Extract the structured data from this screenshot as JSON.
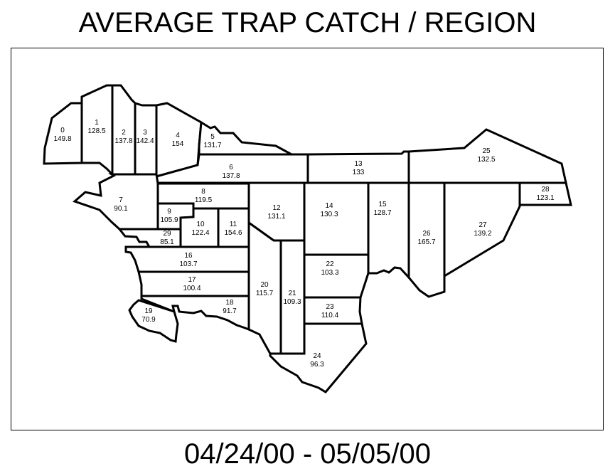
{
  "title": "AVERAGE TRAP CATCH / REGION",
  "date_range": "04/24/00 - 05/05/00",
  "regions": [
    {
      "id": "0",
      "value": "149.8"
    },
    {
      "id": "1",
      "value": "128.5"
    },
    {
      "id": "2",
      "value": "137.8"
    },
    {
      "id": "3",
      "value": "142.4"
    },
    {
      "id": "4",
      "value": "154"
    },
    {
      "id": "5",
      "value": "131.7"
    },
    {
      "id": "6",
      "value": "137.8"
    },
    {
      "id": "7",
      "value": "90.1"
    },
    {
      "id": "8",
      "value": "119.5"
    },
    {
      "id": "9",
      "value": "105.9"
    },
    {
      "id": "10",
      "value": "122.4"
    },
    {
      "id": "11",
      "value": "154.6"
    },
    {
      "id": "12",
      "value": "131.1"
    },
    {
      "id": "13",
      "value": "133"
    },
    {
      "id": "14",
      "value": "130.3"
    },
    {
      "id": "15",
      "value": "128.7"
    },
    {
      "id": "16",
      "value": "103.7"
    },
    {
      "id": "17",
      "value": "100.4"
    },
    {
      "id": "18",
      "value": "91.7"
    },
    {
      "id": "19",
      "value": "70.9"
    },
    {
      "id": "20",
      "value": "115.7"
    },
    {
      "id": "21",
      "value": "109.3"
    },
    {
      "id": "22",
      "value": "103.3"
    },
    {
      "id": "23",
      "value": "110.4"
    },
    {
      "id": "24",
      "value": "96.3"
    },
    {
      "id": "25",
      "value": "132.5"
    },
    {
      "id": "26",
      "value": "165.7"
    },
    {
      "id": "27",
      "value": "139.2"
    },
    {
      "id": "28",
      "value": "123.1"
    },
    {
      "id": "29",
      "value": "85.1"
    }
  ]
}
